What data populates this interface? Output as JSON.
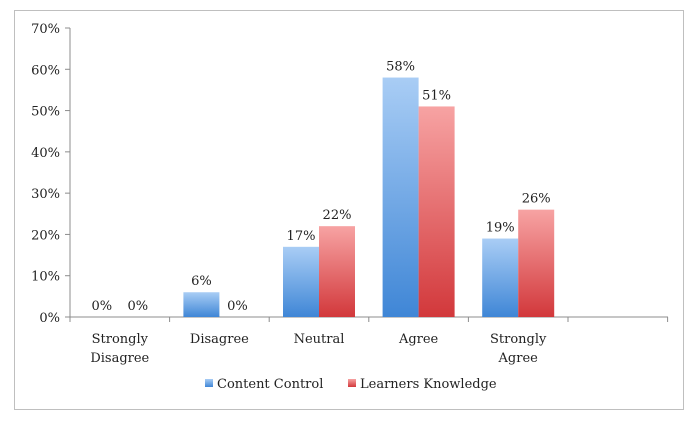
{
  "chart_data": {
    "type": "bar",
    "categories": [
      [
        "Strongly",
        "Disagree"
      ],
      [
        "Disagree"
      ],
      [
        "Neutral"
      ],
      [
        "Agree"
      ],
      [
        "Strongly",
        "Agree"
      ]
    ],
    "series": [
      {
        "name": "Content Control",
        "values": [
          0,
          6,
          17,
          58,
          19
        ],
        "labels": [
          "0%",
          "6%",
          "17%",
          "58%",
          "19%"
        ],
        "color_top": "#a9cdf5",
        "color_bottom": "#3f86d6"
      },
      {
        "name": "Learners Knowledge",
        "values": [
          0,
          0,
          22,
          51,
          26
        ],
        "labels": [
          "0%",
          "0%",
          "22%",
          "51%",
          "26%"
        ],
        "color_top": "#f7a3a3",
        "color_bottom": "#d2383b"
      }
    ],
    "ylim": [
      0,
      70
    ],
    "yticks": [
      0,
      10,
      20,
      30,
      40,
      50,
      60,
      70
    ],
    "ytick_labels": [
      "0%",
      "10%",
      "20%",
      "30%",
      "40%",
      "50%",
      "60%",
      "70%"
    ],
    "legend_position": "bottom",
    "grid": false
  }
}
